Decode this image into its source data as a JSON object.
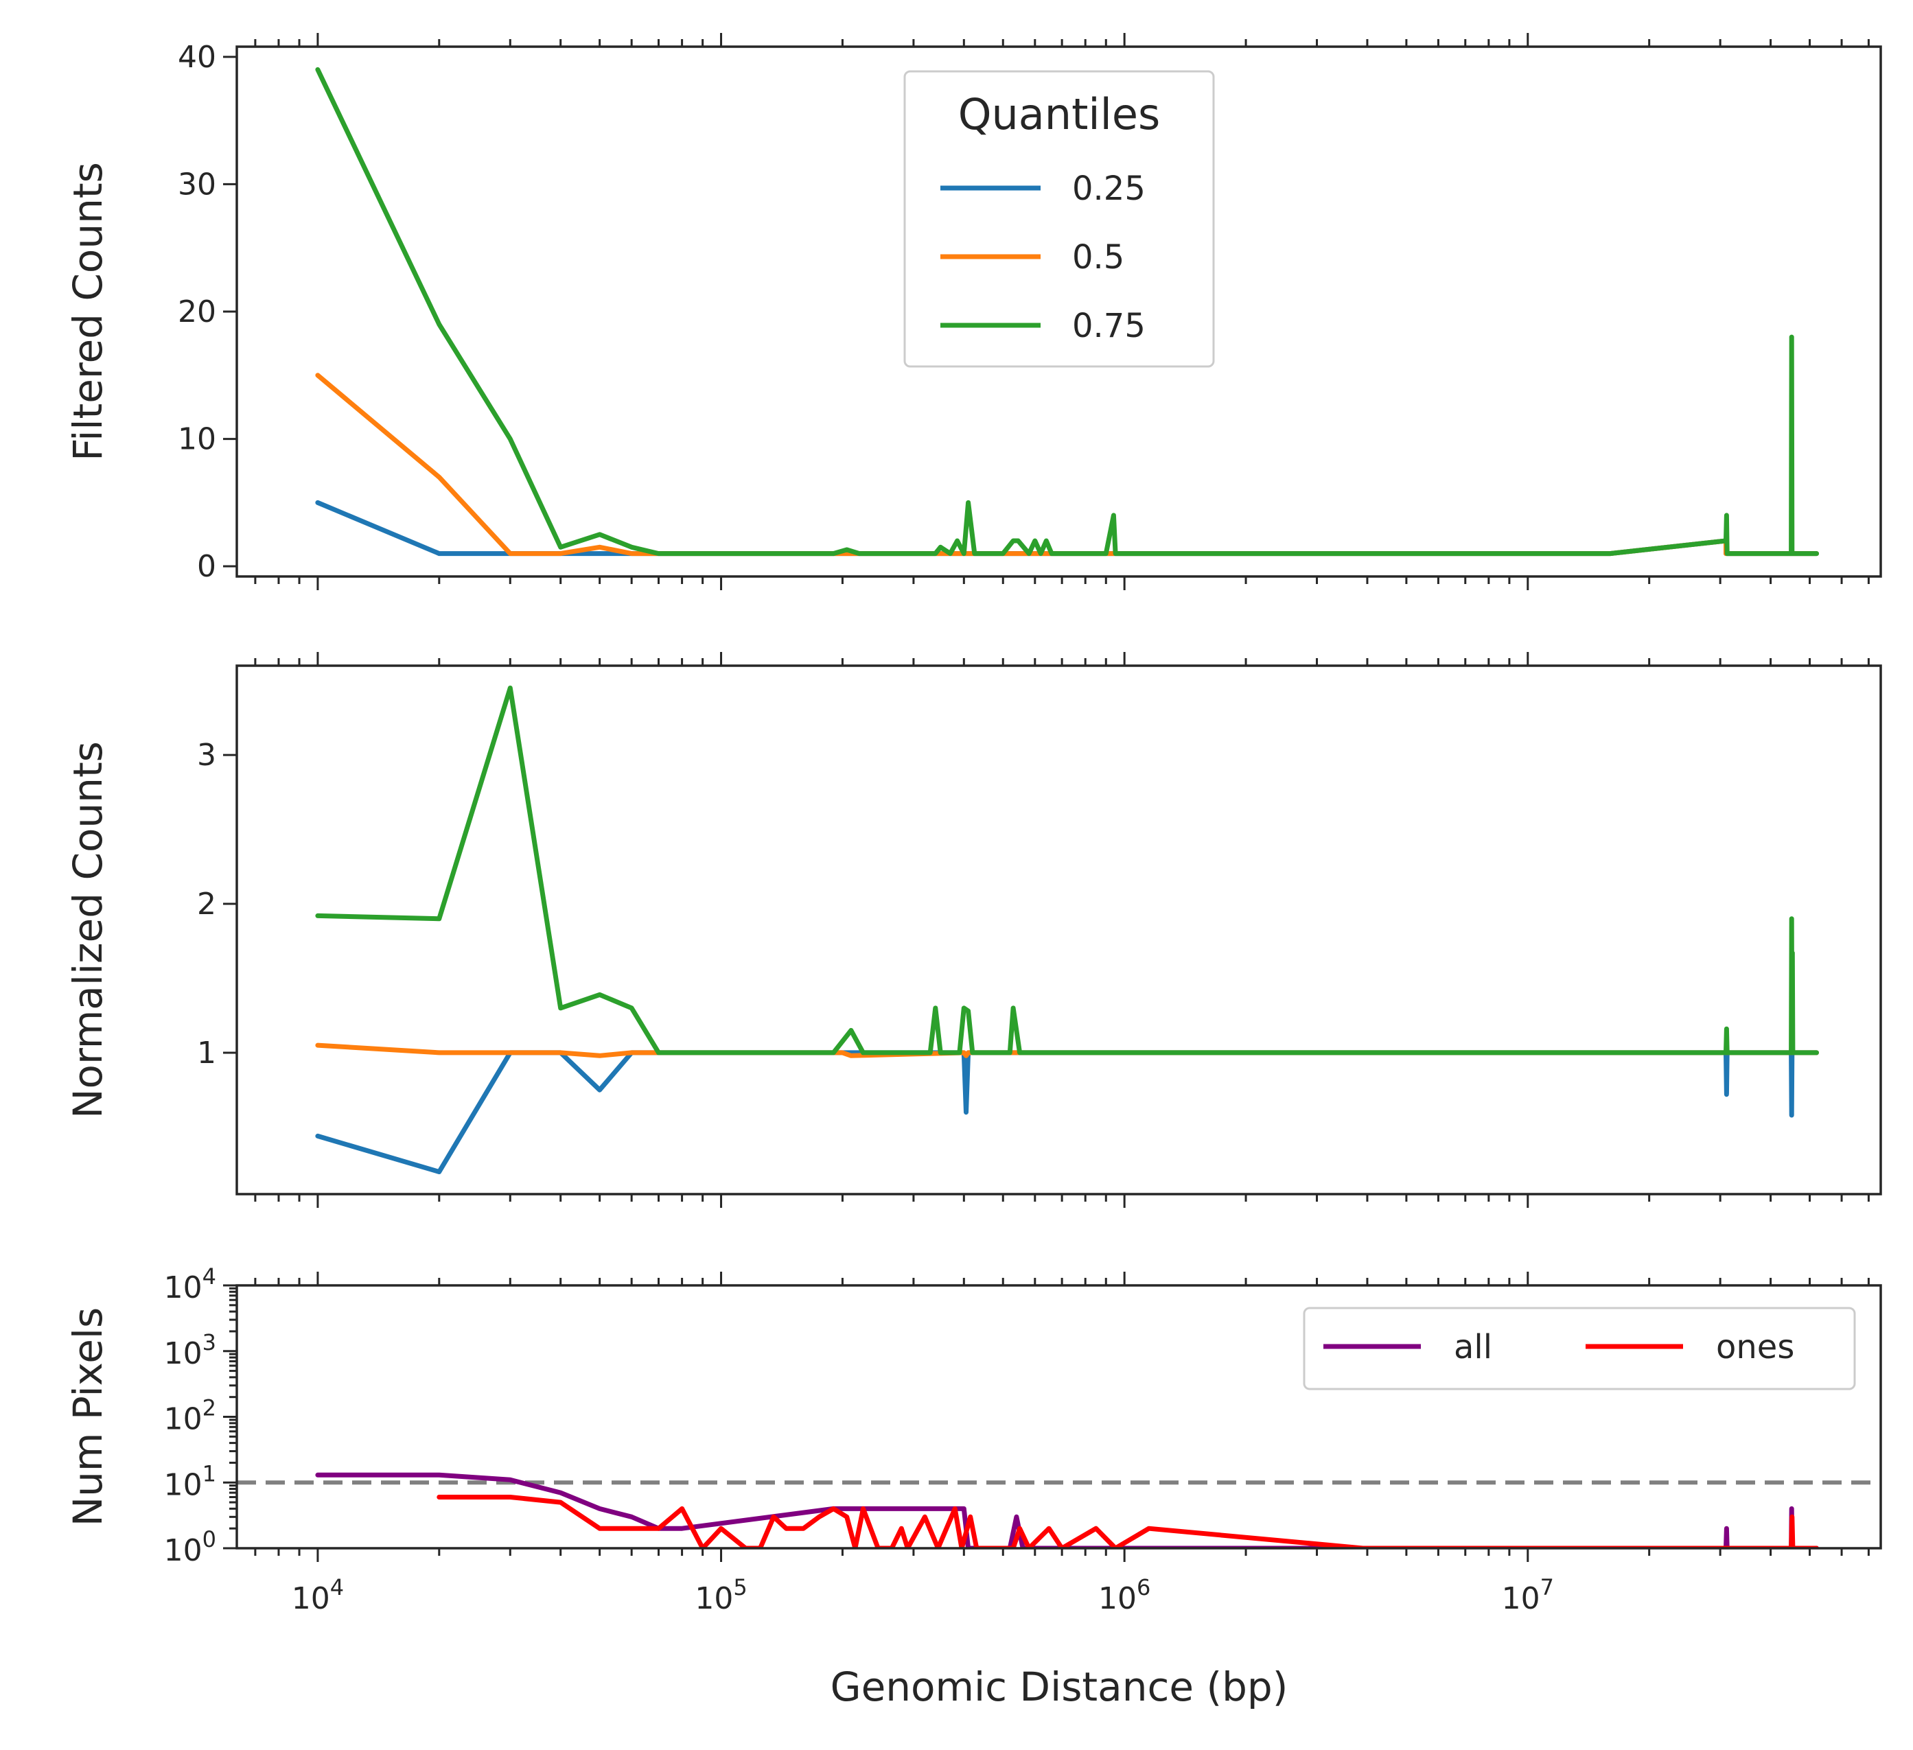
{
  "chart_data": [
    {
      "type": "line",
      "ylabel": "Filtered Counts",
      "xscale": "log",
      "xlim": [
        6300,
        75000000
      ],
      "ylim": [
        -0.8,
        40.8
      ],
      "yticks": [
        0,
        10,
        20,
        30,
        40
      ],
      "grid": false,
      "legend": {
        "title": "Quantiles",
        "placement": "upper-center",
        "entries": [
          "0.25",
          "0.5",
          "0.75"
        ]
      },
      "series": [
        {
          "name": "0.25",
          "color": "#1f77b4",
          "x": [
            10000,
            20000,
            30000,
            40000,
            50000,
            60000,
            70000,
            200000,
            400000,
            500000,
            900000,
            16000000,
            31000000,
            31000000,
            45000000,
            45000000,
            52000000
          ],
          "y": [
            5,
            1,
            1,
            1,
            1,
            1,
            1,
            1,
            1,
            1,
            1,
            1,
            2,
            1,
            1,
            1,
            1
          ]
        },
        {
          "name": "0.5",
          "color": "#ff7f0e",
          "x": [
            10000,
            20000,
            30000,
            40000,
            50000,
            60000,
            70000,
            200000,
            400000,
            500000,
            900000,
            16000000,
            31000000,
            31000000,
            45000000,
            45000000,
            52000000
          ],
          "y": [
            15,
            7,
            1,
            1,
            1.5,
            1,
            1,
            1,
            1,
            1,
            1,
            1,
            2,
            1,
            1,
            1,
            1
          ]
        },
        {
          "name": "0.75",
          "color": "#2ca02c",
          "x": [
            10000,
            20000,
            30000,
            40000,
            50000,
            60000,
            70000,
            190000,
            205000,
            220000,
            340000,
            350000,
            370000,
            385000,
            400000,
            410000,
            425000,
            500000,
            530000,
            545000,
            580000,
            600000,
            620000,
            640000,
            660000,
            900000,
            940000,
            950000,
            16000000,
            31000000,
            31100000,
            31200000,
            45000000,
            45100000,
            45200000,
            45500000,
            52000000
          ],
          "y": [
            39,
            19,
            10,
            1.5,
            2.5,
            1.5,
            1,
            1,
            1.3,
            1,
            1,
            1.5,
            1,
            2,
            1,
            5,
            1,
            1,
            2,
            2,
            1,
            2,
            1,
            2,
            1,
            1,
            4,
            1,
            1,
            2,
            4,
            1,
            1,
            18,
            1,
            1,
            1
          ]
        }
      ]
    },
    {
      "type": "line",
      "ylabel": "Normalized Counts",
      "xscale": "log",
      "xlim": [
        6300,
        75000000
      ],
      "ylim": [
        0.05,
        3.6
      ],
      "yticks": [
        1,
        2,
        3
      ],
      "grid": false,
      "series": [
        {
          "name": "0.25",
          "color": "#1f77b4",
          "x": [
            10000,
            20000,
            30000,
            40000,
            50000,
            60000,
            70000,
            400000,
            405000,
            410000,
            420000,
            31000000,
            31100000,
            31200000,
            45000000,
            45100000,
            45200000,
            52000000
          ],
          "y": [
            0.44,
            0.2,
            1,
            1,
            0.75,
            1,
            1,
            1,
            0.6,
            1,
            1,
            1,
            0.72,
            1,
            1,
            0.58,
            1,
            1
          ]
        },
        {
          "name": "0.5",
          "color": "#ff7f0e",
          "x": [
            10000,
            20000,
            30000,
            40000,
            50000,
            60000,
            70000,
            200000,
            210000,
            400000,
            405000,
            410000,
            52000000
          ],
          "y": [
            1.05,
            1,
            1,
            1,
            0.98,
            1,
            1,
            1,
            0.98,
            1,
            0.98,
            1,
            1
          ]
        },
        {
          "name": "0.75",
          "color": "#2ca02c",
          "x": [
            10000,
            20000,
            30000,
            40000,
            50000,
            60000,
            70000,
            190000,
            210000,
            225000,
            330000,
            340000,
            350000,
            390000,
            400000,
            410000,
            420000,
            520000,
            530000,
            550000,
            31000000,
            31100000,
            31200000,
            45000000,
            45100000,
            45200000,
            45300000,
            45400000,
            52000000
          ],
          "y": [
            1.92,
            1.9,
            3.45,
            1.3,
            1.39,
            1.3,
            1.0,
            1.0,
            1.15,
            1.0,
            1.0,
            1.3,
            1.0,
            1.0,
            1.3,
            1.28,
            1.0,
            1.0,
            1.3,
            1.0,
            1.0,
            1.16,
            1.0,
            1.0,
            1.9,
            1.0,
            1.67,
            1.0,
            1.0
          ]
        }
      ]
    },
    {
      "type": "line",
      "ylabel": "Num Pixels",
      "xlabel": "Genomic Distance (bp)",
      "xscale": "log",
      "yscale": "log",
      "xlim": [
        6300,
        75000000
      ],
      "ylim": [
        1,
        10000
      ],
      "xticks": [
        10000,
        100000,
        1000000,
        10000000
      ],
      "xtick_labels": [
        "10^4",
        "10^5",
        "10^6",
        "10^7"
      ],
      "yticks": [
        1,
        10,
        100,
        1000,
        10000
      ],
      "ytick_labels": [
        "10^0",
        "10^1",
        "10^2",
        "10^3",
        "10^4"
      ],
      "grid": false,
      "reference_line": {
        "y": 10,
        "style": "dashed",
        "color": "#808080"
      },
      "legend": {
        "placement": "upper-right",
        "columns": 2,
        "entries": [
          "all",
          "ones"
        ]
      },
      "series": [
        {
          "name": "all",
          "color": "#800080",
          "x": [
            10000,
            20000,
            30000,
            40000,
            50000,
            60000,
            70000,
            80000,
            190000,
            210000,
            400000,
            410000,
            420000,
            520000,
            540000,
            560000,
            600000,
            31000000,
            31100000,
            31200000,
            45000000,
            45100000,
            45200000,
            52000000
          ],
          "y": [
            13,
            13,
            11,
            7,
            4,
            3,
            2,
            2,
            4,
            4,
            4,
            1,
            1,
            1,
            3,
            1,
            1,
            1,
            2,
            1,
            1,
            4,
            1,
            1
          ]
        },
        {
          "name": "ones",
          "color": "#ff0000",
          "x": [
            20000,
            30000,
            40000,
            50000,
            60000,
            70000,
            80000,
            90000,
            100000,
            115000,
            125000,
            135000,
            145000,
            160000,
            175000,
            190000,
            205000,
            215000,
            225000,
            245000,
            265000,
            280000,
            290000,
            320000,
            345000,
            380000,
            395000,
            415000,
            430000,
            470000,
            530000,
            550000,
            580000,
            650000,
            700000,
            850000,
            950000,
            1150000,
            3900000,
            16000000,
            31000000,
            45000000,
            45200000,
            45400000,
            52000000
          ],
          "y": [
            6,
            6,
            5,
            2,
            2,
            2,
            4,
            1,
            2,
            1,
            1,
            3,
            2,
            2,
            3,
            4,
            3,
            1,
            4,
            1,
            1,
            2,
            1,
            3,
            1,
            4,
            1,
            3,
            1,
            1,
            1,
            2,
            1,
            2,
            1,
            2,
            1,
            2,
            1,
            1,
            1,
            1,
            3,
            1,
            1
          ]
        }
      ]
    }
  ],
  "xlabel": "Genomic Distance (bp)"
}
